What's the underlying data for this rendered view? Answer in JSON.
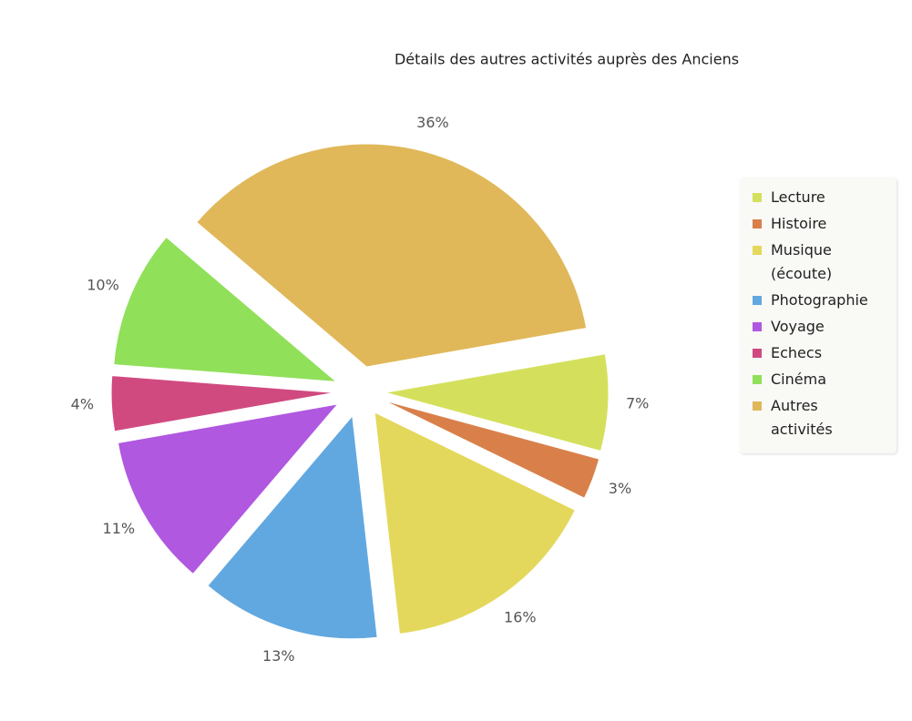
{
  "chart_data": {
    "type": "pie",
    "title": "Détails des autres activités auprès des Anciens",
    "categories": [
      "Lecture",
      "Histoire",
      "Musique (écoute)",
      "Photographie",
      "Voyage",
      "Echecs",
      "Cinéma",
      "Autres activités"
    ],
    "values": [
      7,
      3,
      16,
      13,
      11,
      4,
      10,
      36
    ],
    "value_labels": [
      "7%",
      "3%",
      "16%",
      "13%",
      "11%",
      "4%",
      "10%",
      "36%"
    ],
    "colors": [
      "#d4e05c",
      "#d9804a",
      "#e4d85c",
      "#62a8e0",
      "#b058e0",
      "#d04a80",
      "#90e05a",
      "#e0b85a"
    ],
    "legend": "right"
  }
}
